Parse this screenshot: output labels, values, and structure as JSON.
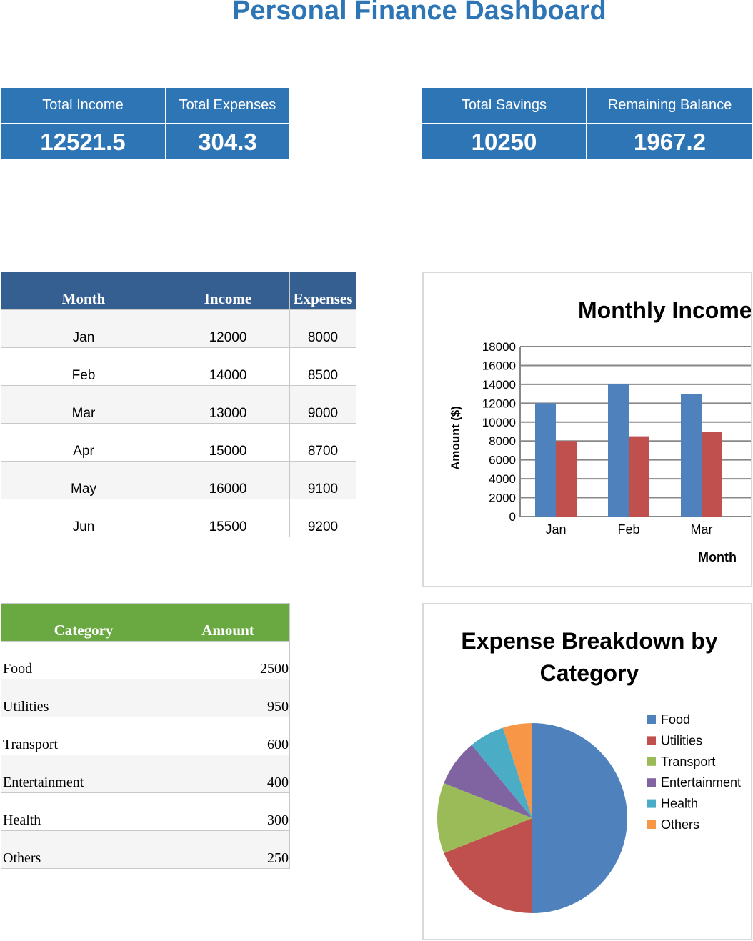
{
  "title": "Personal Finance Dashboard",
  "kpis_left": [
    {
      "label": "Total Income",
      "value": "12521.5"
    },
    {
      "label": "Total Expenses",
      "value": "304.3"
    }
  ],
  "kpis_right": [
    {
      "label": "Total Savings",
      "value": "10250"
    },
    {
      "label": "Remaining Balance",
      "value": "1967.2"
    }
  ],
  "monthly_table": {
    "headers": [
      "Month",
      "Income",
      "Expenses"
    ],
    "rows": [
      [
        "Jan",
        "12000",
        "8000"
      ],
      [
        "Feb",
        "14000",
        "8500"
      ],
      [
        "Mar",
        "13000",
        "9000"
      ],
      [
        "Apr",
        "15000",
        "8700"
      ],
      [
        "May",
        "16000",
        "9100"
      ],
      [
        "Jun",
        "15500",
        "9200"
      ]
    ]
  },
  "category_table": {
    "headers": [
      "Category",
      "Amount"
    ],
    "rows": [
      [
        "Food",
        "2500"
      ],
      [
        "Utilities",
        "950"
      ],
      [
        "Transport",
        "600"
      ],
      [
        "Entertainment",
        "400"
      ],
      [
        "Health",
        "300"
      ],
      [
        "Others",
        "250"
      ]
    ]
  },
  "chart_data": [
    {
      "type": "bar",
      "title": "Monthly Income",
      "xlabel": "Month",
      "ylabel": "Amount ($)",
      "categories": [
        "Jan",
        "Feb",
        "Mar"
      ],
      "series": [
        {
          "values": [
            12000,
            14000,
            13000
          ],
          "color": "#4F81BD"
        },
        {
          "values": [
            8000,
            8500,
            9000
          ],
          "color": "#C0504D"
        }
      ],
      "ylim": [
        0,
        18000
      ],
      "yticks": [
        "0",
        "2000",
        "4000",
        "6000",
        "8000",
        "10000",
        "12000",
        "14000",
        "16000",
        "18000"
      ],
      "grid": true
    },
    {
      "type": "pie",
      "title": "Expense Breakdown by Category",
      "labels": [
        "Food",
        "Utilities",
        "Transport",
        "Entertainment",
        "Health",
        "Others"
      ],
      "values": [
        2500,
        950,
        600,
        400,
        300,
        250
      ],
      "colors": [
        "#4F81BD",
        "#C0504D",
        "#9BBB59",
        "#8064A2",
        "#4BACC6",
        "#F79646"
      ],
      "legend": "right"
    }
  ]
}
